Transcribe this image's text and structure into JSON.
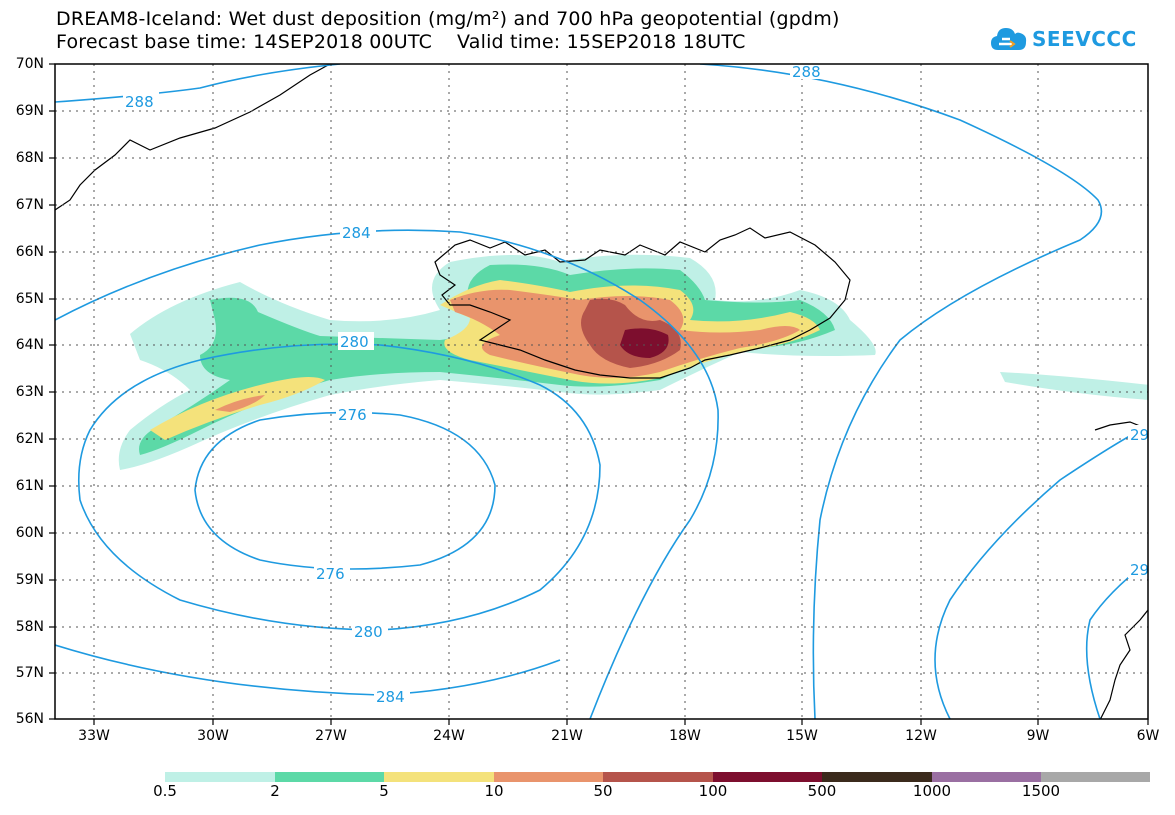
{
  "title": {
    "line1": "DREAM8-Iceland: Wet dust deposition (mg/m²) and 700 hPa geopotential (gpdm)",
    "line2": "Forecast base time: 14SEP2018 00UTC    Valid time: 15SEP2018 18UTC"
  },
  "logo": {
    "text": "SEEVCCC",
    "icon": "cloud-icon",
    "color": "#1e9ae0"
  },
  "axes": {
    "lat_labels": [
      "70N",
      "69N",
      "68N",
      "67N",
      "66N",
      "65N",
      "64N",
      "63N",
      "62N",
      "61N",
      "60N",
      "59N",
      "58N",
      "57N",
      "56N"
    ],
    "lon_labels": [
      "33W",
      "30W",
      "27W",
      "24W",
      "21W",
      "18W",
      "15W",
      "12W",
      "9W",
      "6W"
    ]
  },
  "contours": {
    "color": "#1e9ae0",
    "labels": [
      "288",
      "288",
      "284",
      "284",
      "280",
      "280",
      "276",
      "276",
      "29",
      "29"
    ]
  },
  "legend": {
    "labels": [
      "0.5",
      "2",
      "5",
      "10",
      "50",
      "100",
      "500",
      "1000",
      "1500"
    ],
    "colors": [
      "#bff0e6",
      "#5cd9a7",
      "#f4e27b",
      "#e9946c",
      "#b5544b",
      "#7d0e2e",
      "#3b2a1c",
      "#9a6fa2",
      "#a8a8a8"
    ]
  }
}
